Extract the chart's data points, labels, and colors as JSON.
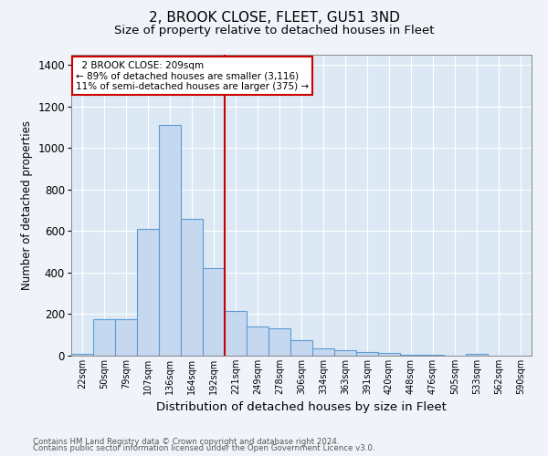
{
  "title": "2, BROOK CLOSE, FLEET, GU51 3ND",
  "subtitle": "Size of property relative to detached houses in Fleet",
  "xlabel": "Distribution of detached houses by size in Fleet",
  "ylabel": "Number of detached properties",
  "footnote1": "Contains HM Land Registry data © Crown copyright and database right 2024.",
  "footnote2": "Contains public sector information licensed under the Open Government Licence v3.0.",
  "categories": [
    "22sqm",
    "50sqm",
    "79sqm",
    "107sqm",
    "136sqm",
    "164sqm",
    "192sqm",
    "221sqm",
    "249sqm",
    "278sqm",
    "306sqm",
    "334sqm",
    "363sqm",
    "391sqm",
    "420sqm",
    "448sqm",
    "476sqm",
    "505sqm",
    "533sqm",
    "562sqm",
    "590sqm"
  ],
  "values": [
    10,
    175,
    175,
    610,
    1110,
    660,
    420,
    215,
    140,
    130,
    75,
    35,
    25,
    18,
    12,
    5,
    4,
    2,
    10,
    0,
    0
  ],
  "bar_color": "#c5d8ef",
  "bar_edge_color": "#5b9bd5",
  "red_line_index": 7,
  "annotation_line1": "2 BROOK CLOSE: 209sqm",
  "annotation_line2": "← 89% of detached houses are smaller (3,116)",
  "annotation_line3": "11% of semi-detached houses are larger (375) →",
  "ylim": [
    0,
    1450
  ],
  "yticks": [
    0,
    200,
    400,
    600,
    800,
    1000,
    1200,
    1400
  ],
  "plot_bg_color": "#dce9f5",
  "figure_bg_color": "#f0f4fa",
  "grid_color": "#ffffff",
  "title_fontsize": 11,
  "subtitle_fontsize": 9.5,
  "annotation_box_color": "#ffffff",
  "annotation_box_edge": "#cc0000",
  "footnote_color": "#555555"
}
